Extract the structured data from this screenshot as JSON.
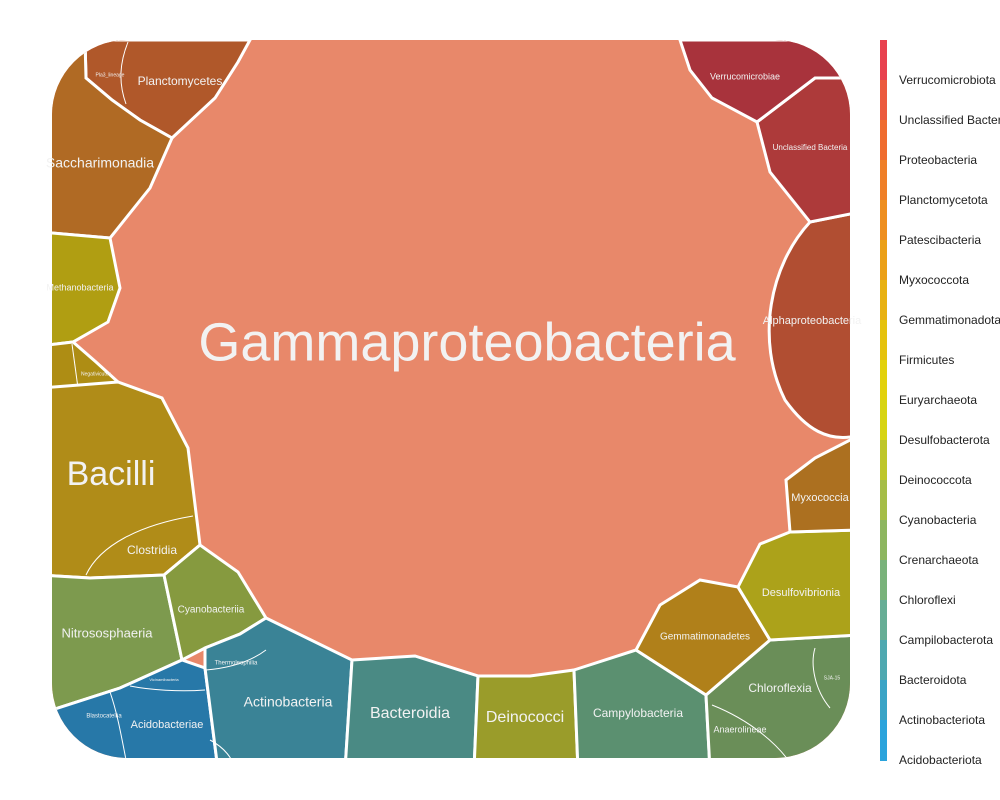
{
  "chart_data": {
    "type": "voronoi-treemap",
    "title": "",
    "legend": {
      "placement": "right",
      "entries": [
        {
          "name": "Verrucomicrobiota",
          "color": "#e8414f"
        },
        {
          "name": "Unclassified Bacteria",
          "color": "#eb5a3e"
        },
        {
          "name": "Proteobacteria",
          "color": "#ef6c2f"
        },
        {
          "name": "Planctomycetota",
          "color": "#ef7f28"
        },
        {
          "name": "Patescibacteria",
          "color": "#ee8f20"
        },
        {
          "name": "Myxococcota",
          "color": "#eba018"
        },
        {
          "name": "Gemmatimonadota",
          "color": "#e8b112"
        },
        {
          "name": "Firmicutes",
          "color": "#e5c20d"
        },
        {
          "name": "Euryarchaeota",
          "color": "#e2d10b"
        },
        {
          "name": "Desulfobacterota",
          "color": "#d7d412"
        },
        {
          "name": "Deinococcota",
          "color": "#bec62a"
        },
        {
          "name": "Cyanobacteria",
          "color": "#a5bd47"
        },
        {
          "name": "Crenarchaeota",
          "color": "#8db65f"
        },
        {
          "name": "Chloroflexi",
          "color": "#79b27a"
        },
        {
          "name": "Campilobacterota",
          "color": "#66ad95"
        },
        {
          "name": "Bacteroidota",
          "color": "#4ea8b0"
        },
        {
          "name": "Actinobacteriota",
          "color": "#3aa4c6"
        },
        {
          "name": "Acidobacteriota",
          "color": "#2aa3dc"
        }
      ]
    },
    "cells": [
      {
        "name": "Gammaproteobacteria",
        "phylum": "Proteobacteria",
        "color": "#e8886a"
      },
      {
        "name": "Alphaproteobacteria",
        "phylum": "Proteobacteria",
        "color": "#b14e32"
      },
      {
        "name": "Verrucomicrobiae",
        "phylum": "Verrucomicrobiota",
        "color": "#a8333c"
      },
      {
        "name": "Unclassified Bacteria",
        "phylum": "Unclassified Bacteria",
        "color": "#ad3a3a"
      },
      {
        "name": "Planctomycetes",
        "phylum": "Planctomycetota",
        "color": "#b0582a"
      },
      {
        "name": "Pla3_lineage",
        "phylum": "Planctomycetota",
        "color": "#b0582a"
      },
      {
        "name": "Saccharimonadia",
        "phylum": "Patescibacteria",
        "color": "#b06a24"
      },
      {
        "name": "Methanobacteria",
        "phylum": "Euryarchaeota",
        "color": "#b09e12"
      },
      {
        "name": "Negativicutes",
        "phylum": "Firmicutes",
        "color": "#ae8d14"
      },
      {
        "name": "Bacilli",
        "phylum": "Firmicutes",
        "color": "#b08c18"
      },
      {
        "name": "Clostridia",
        "phylum": "Firmicutes",
        "color": "#b08c18"
      },
      {
        "name": "Nitrososphaeria",
        "phylum": "Crenarchaeota",
        "color": "#7d9a4e"
      },
      {
        "name": "Cyanobacteriia",
        "phylum": "Cyanobacteria",
        "color": "#869a3f"
      },
      {
        "name": "Actinobacteria",
        "phylum": "Actinobacteriota",
        "color": "#3a8396"
      },
      {
        "name": "Thermoleophilia",
        "phylum": "Actinobacteriota",
        "color": "#3a8396"
      },
      {
        "name": "Vicinamibacteria",
        "phylum": "Acidobacteriota",
        "color": "#2778a8"
      },
      {
        "name": "Blastocatellia",
        "phylum": "Acidobacteriota",
        "color": "#2778a8"
      },
      {
        "name": "Acidobacteriae",
        "phylum": "Acidobacteriota",
        "color": "#2778a8"
      },
      {
        "name": "Bacteroidia",
        "phylum": "Bacteroidota",
        "color": "#4a8a84"
      },
      {
        "name": "Deinococci",
        "phylum": "Deinococcota",
        "color": "#9a9c2a"
      },
      {
        "name": "Campylobacteria",
        "phylum": "Campilobacterota",
        "color": "#5b9070"
      },
      {
        "name": "Chloroflexia",
        "phylum": "Chloroflexi",
        "color": "#6a8e58"
      },
      {
        "name": "Anaerolineae",
        "phylum": "Chloroflexi",
        "color": "#6a8e58"
      },
      {
        "name": "SJA-15",
        "phylum": "Chloroflexi",
        "color": "#6a8e58"
      },
      {
        "name": "Gemmatimonadetes",
        "phylum": "Gemmatimonadota",
        "color": "#b0801a"
      },
      {
        "name": "Desulfovibrionia",
        "phylum": "Desulfobacterota",
        "color": "#aca21a"
      },
      {
        "name": "Myxococcia",
        "phylum": "Myxococcota",
        "color": "#ac7020"
      }
    ]
  }
}
